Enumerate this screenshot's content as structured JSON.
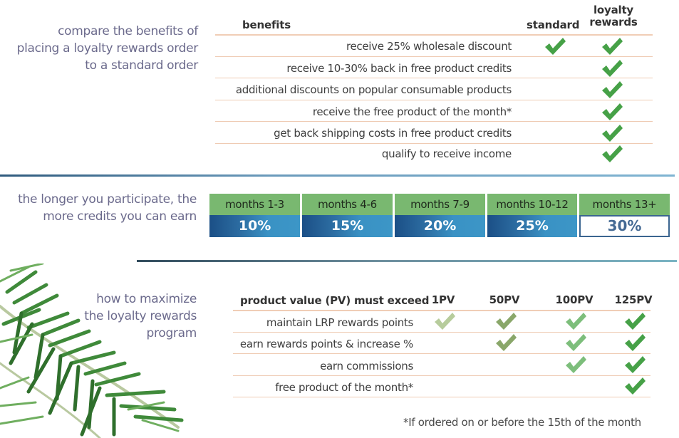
{
  "compare_section": {
    "title_lines": [
      "compare the benefits of",
      "placing a loyalty rewards order",
      "to a standard order"
    ],
    "headers": {
      "benefits": "benefits",
      "standard": "standard",
      "loyalty_rewards_line1": "loyalty",
      "loyalty_rewards_line2": "rewards"
    },
    "rows": [
      {
        "label": "receive 25% wholesale discount",
        "standard": true,
        "loyalty": true
      },
      {
        "label": "receive 10-30% back in free product credits",
        "standard": false,
        "loyalty": true
      },
      {
        "label": "additional discounts on popular consumable products",
        "standard": false,
        "loyalty": true
      },
      {
        "label": "receive the free product of the month*",
        "standard": false,
        "loyalty": true
      },
      {
        "label": "get back shipping costs in free product credits",
        "standard": false,
        "loyalty": true
      },
      {
        "label": "qualify to receive income",
        "standard": false,
        "loyalty": true
      }
    ]
  },
  "credits_section": {
    "title_lines": [
      "the longer you participate, the",
      "more credits you can earn"
    ],
    "tiers": [
      {
        "label": "months 1-3",
        "percent": "10%"
      },
      {
        "label": "months 4-6",
        "percent": "15%"
      },
      {
        "label": "months 7-9",
        "percent": "20%"
      },
      {
        "label": "months 10-12",
        "percent": "25%"
      },
      {
        "label": "months 13+",
        "percent": "30%",
        "highlighted": true
      }
    ]
  },
  "maximize_section": {
    "title_lines": [
      "how to maximize",
      "the loyalty rewards",
      "program"
    ],
    "header_label": "product value (PV) must exceed",
    "columns": [
      "1PV",
      "50PV",
      "100PV",
      "125PV"
    ],
    "rows": [
      {
        "label": "maintain LRP rewards points",
        "checks": [
          true,
          true,
          true,
          true
        ]
      },
      {
        "label": "earn rewards points & increase %",
        "checks": [
          false,
          true,
          true,
          true
        ]
      },
      {
        "label": "earn commissions",
        "checks": [
          false,
          false,
          true,
          true
        ]
      },
      {
        "label": "free product of the month*",
        "checks": [
          false,
          false,
          false,
          true
        ]
      }
    ],
    "footnote": "*If ordered on or before the 15th of the month"
  },
  "colors": {
    "check_strong": "#46a147",
    "check_1pv": "#b7cc9c",
    "check_50pv": "#8aa76a",
    "check_100pv": "#7dbe7b",
    "tier_label_bg": "#79b870",
    "tier_pct_blue": "#3a92c4",
    "title_purple": "#6b6a8c",
    "row_line": "#f0cdb6"
  }
}
